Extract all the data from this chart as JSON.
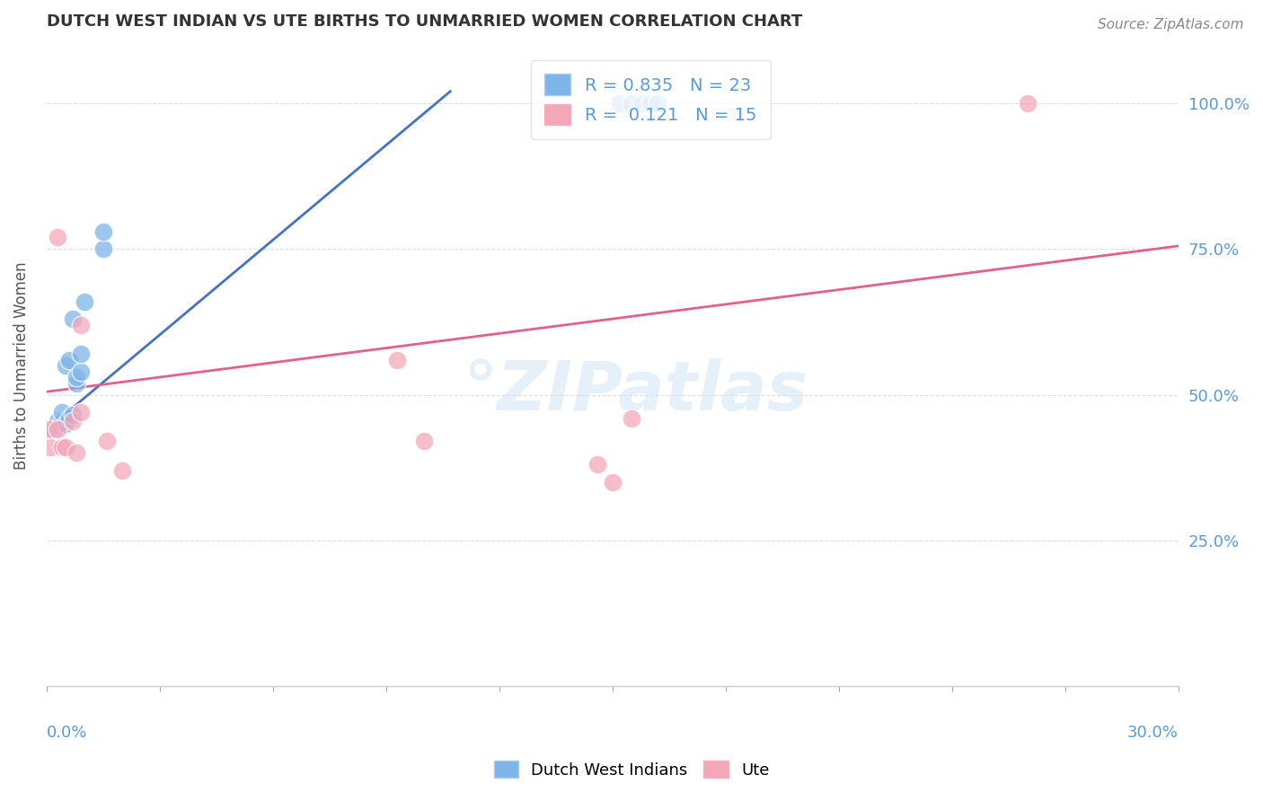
{
  "title": "DUTCH WEST INDIAN VS UTE BIRTHS TO UNMARRIED WOMEN CORRELATION CHART",
  "source": "Source: ZipAtlas.com",
  "ylabel": "Births to Unmarried Women",
  "xmin": 0.0,
  "xmax": 0.3,
  "ymin": 0.0,
  "ymax": 1.1,
  "yticks_right": [
    0.25,
    0.5,
    0.75,
    1.0
  ],
  "ytick_labels_right": [
    "25.0%",
    "50.0%",
    "75.0%",
    "100.0%"
  ],
  "blue_R": 0.835,
  "blue_N": 23,
  "pink_R": 0.121,
  "pink_N": 15,
  "blue_color": "#7EB5E8",
  "blue_line_color": "#4472C4",
  "pink_color": "#F4A7B9",
  "pink_line_color": "#E06090",
  "blue_label": "Dutch West Indians",
  "pink_label": "Ute",
  "blue_points_x": [
    0.001,
    0.002,
    0.003,
    0.004,
    0.004,
    0.005,
    0.005,
    0.006,
    0.006,
    0.007,
    0.007,
    0.008,
    0.008,
    0.009,
    0.009,
    0.01,
    0.015,
    0.015,
    0.152,
    0.155,
    0.158,
    0.16,
    0.162
  ],
  "blue_points_y": [
    0.44,
    0.44,
    0.455,
    0.455,
    0.47,
    0.45,
    0.55,
    0.46,
    0.56,
    0.465,
    0.63,
    0.52,
    0.53,
    0.54,
    0.57,
    0.66,
    0.75,
    0.78,
    1.0,
    1.0,
    1.0,
    1.0,
    1.0
  ],
  "pink_points_x": [
    0.001,
    0.001,
    0.003,
    0.004,
    0.005,
    0.007,
    0.008,
    0.009,
    0.016,
    0.093,
    0.1,
    0.146,
    0.15,
    0.155,
    0.26
  ],
  "pink_points_y": [
    0.41,
    0.44,
    0.44,
    0.41,
    0.41,
    0.455,
    0.4,
    0.47,
    0.42,
    0.56,
    0.42,
    0.38,
    0.35,
    0.46,
    1.0
  ],
  "pink_lowx_points_x": [
    0.003,
    0.009,
    0.02
  ],
  "pink_lowx_points_y": [
    0.77,
    0.62,
    0.37
  ],
  "blue_line_x0": 0.0,
  "blue_line_y0": 0.44,
  "blue_line_x1": 0.107,
  "blue_line_y1": 1.02,
  "pink_line_x0": 0.0,
  "pink_line_y0": 0.505,
  "pink_line_x1": 0.3,
  "pink_line_y1": 0.755,
  "watermark": "ZIPatlas",
  "grid_color": "#DDDDDD",
  "axis_label_color": "#5B9BD5",
  "title_color": "#333333"
}
